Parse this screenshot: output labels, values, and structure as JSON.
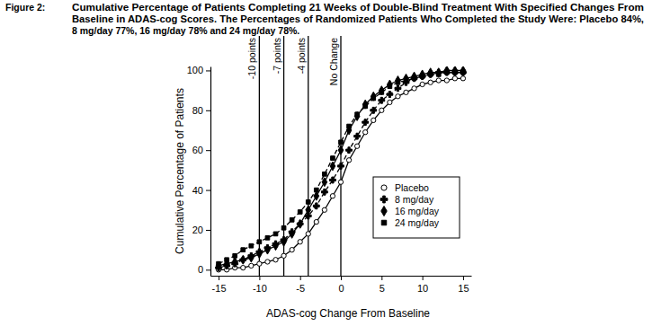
{
  "chart_data": {
    "type": "line",
    "title": "Figure 2:",
    "subtitle": [
      "Cumulative Percentage of Patients Completing 21 Weeks of Double-Blind Treatment With Specified Changes From",
      "Baseline in ADAS-cog Scores. The Percentages of Randomized Patients Who Completed the Study Were: Placebo 84%,",
      "8 mg/day 77%, 16 mg/day 78% and 24 mg/day 78%."
    ],
    "x_label": "ADAS-cog Change From Baseline",
    "y_label": "Cumulative Percentage of Patients",
    "x": [
      -15,
      -14,
      -13,
      -12,
      -11,
      -10,
      -9,
      -8,
      -7,
      -6,
      -5,
      -4,
      -3,
      -2,
      -1,
      0,
      1,
      2,
      3,
      4,
      5,
      6,
      7,
      8,
      9,
      10,
      11,
      12,
      13,
      14,
      15
    ],
    "series": [
      {
        "name": "Placebo",
        "color": "#000000",
        "marker": "open_circle",
        "line_style": "solid",
        "values": [
          0,
          0,
          1,
          1,
          2,
          3,
          4,
          5,
          7,
          10,
          14,
          18,
          24,
          30,
          37,
          44,
          55,
          62,
          69,
          75,
          80,
          84,
          87,
          89,
          91,
          93,
          94,
          95,
          95,
          96,
          96
        ]
      },
      {
        "name": "8 mg/day",
        "color": "#000000",
        "marker": "club",
        "line_style": "dashed",
        "values": [
          1,
          2,
          3,
          5,
          7,
          9,
          11,
          13,
          15,
          19,
          23,
          27,
          32,
          39,
          45,
          52,
          60,
          67,
          74,
          80,
          85,
          88,
          91,
          94,
          96,
          97,
          98,
          99,
          99,
          99,
          99
        ]
      },
      {
        "name": "16 mg/day",
        "color": "#000000",
        "marker": "diamond",
        "line_style": "solid",
        "values": [
          2,
          3,
          4,
          5,
          6,
          8,
          10,
          12,
          14,
          18,
          23,
          30,
          37,
          44,
          52,
          60,
          70,
          77,
          83,
          87,
          90,
          93,
          95,
          96,
          97,
          98,
          99,
          99,
          100,
          100,
          100
        ]
      },
      {
        "name": "24 mg/day",
        "color": "#000000",
        "marker": "square",
        "line_style": "dashed",
        "values": [
          3,
          5,
          7,
          10,
          12,
          14,
          16,
          18,
          21,
          25,
          29,
          34,
          40,
          48,
          56,
          64,
          72,
          78,
          82,
          86,
          89,
          92,
          94,
          95,
          96,
          97,
          98,
          98,
          99,
          99,
          99
        ]
      }
    ],
    "annotations": [
      {
        "x": -10,
        "text": "-10 points"
      },
      {
        "x": -7,
        "text": "-7 points"
      },
      {
        "x": -4,
        "text": "-4 points"
      },
      {
        "x": 0,
        "text": "No Change"
      }
    ],
    "xlim": [
      -16,
      16
    ],
    "xticks": [
      -15,
      -10,
      -5,
      0,
      5,
      10,
      15
    ],
    "ylim": [
      -3,
      102
    ],
    "yticks": [
      0,
      20,
      40,
      60,
      80,
      100
    ],
    "grid": false,
    "legend": "lower right"
  }
}
